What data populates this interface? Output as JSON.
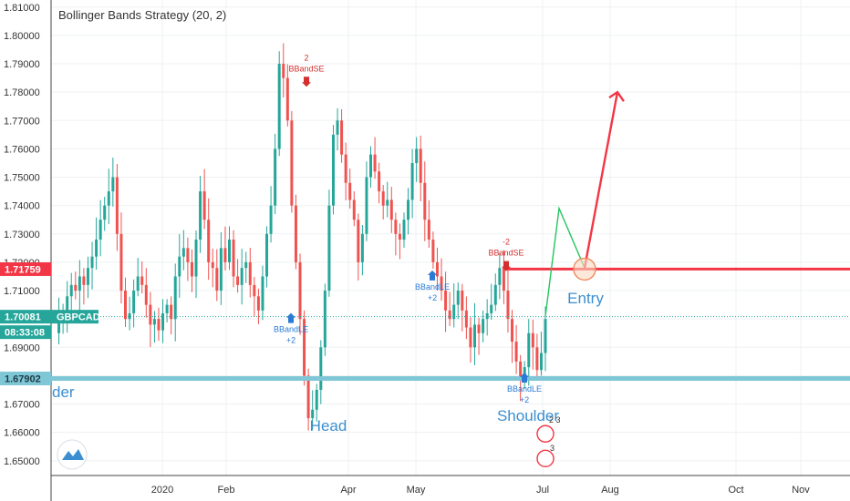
{
  "header": {
    "title": "Bollinger Bands Strategy (20, 2)"
  },
  "chart_data": {
    "type": "candlestick",
    "title": "Bollinger Bands Strategy (20, 2)",
    "symbol": "GBPCAD",
    "ylim": [
      1.6448,
      1.8125
    ],
    "yticks": [
      "1.65000",
      "1.66000",
      "1.67000",
      "1.68000",
      "1.69000",
      "1.70000",
      "1.71000",
      "1.72000",
      "1.73000",
      "1.74000",
      "1.75000",
      "1.76000",
      "1.77000",
      "1.78000",
      "1.79000",
      "1.80000",
      "1.81000"
    ],
    "xticks": [
      "2020",
      "Feb",
      "Apr",
      "May",
      "Jul",
      "Aug",
      "Oct",
      "Nov"
    ],
    "grid": true,
    "colors": {
      "up": "#26a69a",
      "down": "#ef5350",
      "resistance": "#f23645",
      "support": "#7fc6d6",
      "annotation": "#3b8fd0",
      "projection_green": "#22c55e",
      "projection_red": "#f23645",
      "last_price": "#26a69a"
    },
    "levels": {
      "resistance": {
        "value": 1.71759,
        "label": "1.71759"
      },
      "support": {
        "value": 1.67902,
        "label": "1.67902"
      },
      "last": {
        "value": 1.70081,
        "label": "1.70081",
        "symbol": "GBPCAD",
        "countdown": "08:33:08"
      }
    },
    "annotations": {
      "left_shoulder": "der",
      "head": "Head",
      "right_shoulder": "Shoulder",
      "entry": "Entry"
    },
    "signals": {
      "short_1": {
        "qty": "2",
        "name": "BBandSE"
      },
      "long_1": {
        "name": "BBandLE",
        "qty": "+2"
      },
      "long_2": {
        "name": "BBandLE",
        "qty": "+2"
      },
      "short_2": {
        "qty": "-2",
        "name": "BBandSE"
      },
      "long_3": {
        "name": "BBandLE",
        "qty": "+2"
      }
    },
    "events": [
      "2 3",
      "3"
    ],
    "projection": {
      "green_path": [
        1.701,
        1.739,
        1.718
      ],
      "red_target": 1.78
    },
    "price_path": [
      1.695,
      1.7,
      1.703,
      1.708,
      1.712,
      1.71,
      1.715,
      1.712,
      1.718,
      1.722,
      1.728,
      1.735,
      1.74,
      1.745,
      1.75,
      1.73,
      1.71,
      1.7,
      1.702,
      1.71,
      1.715,
      1.712,
      1.705,
      1.698,
      1.7,
      1.696,
      1.702,
      1.705,
      1.7,
      1.715,
      1.722,
      1.725,
      1.72,
      1.715,
      1.728,
      1.745,
      1.735,
      1.72,
      1.718,
      1.71,
      1.725,
      1.72,
      1.728,
      1.715,
      1.712,
      1.718,
      1.72,
      1.712,
      1.708,
      1.703,
      1.715,
      1.73,
      1.74,
      1.76,
      1.79,
      1.785,
      1.77,
      1.74,
      1.72,
      1.7,
      1.68,
      1.665,
      1.668,
      1.675,
      1.69,
      1.71,
      1.74,
      1.765,
      1.77,
      1.758,
      1.748,
      1.742,
      1.735,
      1.72,
      1.73,
      1.75,
      1.758,
      1.752,
      1.745,
      1.74,
      1.742,
      1.735,
      1.73,
      1.728,
      1.735,
      1.742,
      1.755,
      1.76,
      1.748,
      1.735,
      1.728,
      1.72,
      1.715,
      1.71,
      1.703,
      1.7,
      1.705,
      1.71,
      1.703,
      1.697,
      1.69,
      1.698,
      1.695,
      1.7,
      1.702,
      1.705,
      1.712,
      1.718,
      1.71,
      1.7,
      1.692,
      1.685,
      1.679,
      1.683,
      1.695,
      1.69,
      1.682,
      1.688,
      1.7
    ]
  }
}
